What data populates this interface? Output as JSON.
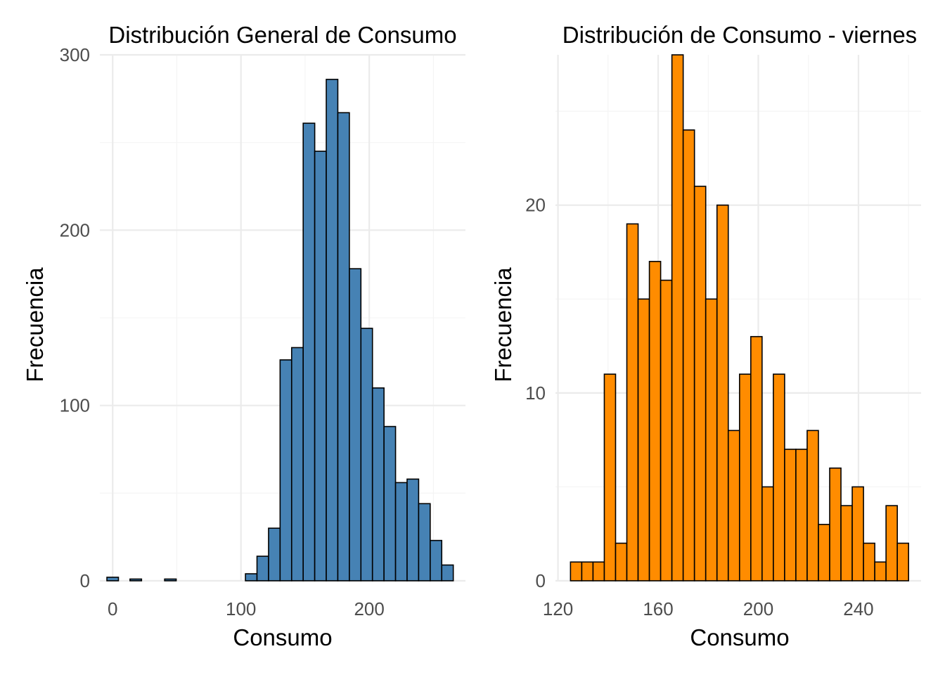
{
  "chart_data": [
    {
      "type": "histogram",
      "title": "Distribución General de Consumo",
      "xlabel": "Consumo",
      "ylabel": "Frecuencia",
      "bar_color": "#4682b4",
      "border_color": "#000000",
      "xlim": [
        -10,
        275
      ],
      "ylim": [
        0,
        300
      ],
      "x_ticks": [
        0,
        100,
        200
      ],
      "y_ticks": [
        0,
        100,
        200,
        300
      ],
      "x_minor": [
        50,
        150,
        250
      ],
      "y_minor": [
        50,
        150,
        250
      ],
      "bins": [
        {
          "start": -4.5,
          "end": 4.5,
          "count": 2
        },
        {
          "start": 4.5,
          "end": 13.5,
          "count": 0
        },
        {
          "start": 13.5,
          "end": 22.5,
          "count": 1
        },
        {
          "start": 22.5,
          "end": 31.5,
          "count": 0
        },
        {
          "start": 31.5,
          "end": 40.5,
          "count": 0
        },
        {
          "start": 40.5,
          "end": 49.5,
          "count": 1
        },
        {
          "start": 49.5,
          "end": 58.5,
          "count": 0
        },
        {
          "start": 58.5,
          "end": 67.5,
          "count": 0
        },
        {
          "start": 67.5,
          "end": 76.5,
          "count": 0
        },
        {
          "start": 76.5,
          "end": 85.5,
          "count": 0
        },
        {
          "start": 85.5,
          "end": 94.5,
          "count": 0
        },
        {
          "start": 94.5,
          "end": 103.5,
          "count": 0
        },
        {
          "start": 103.5,
          "end": 112.5,
          "count": 4
        },
        {
          "start": 112.5,
          "end": 121.5,
          "count": 14
        },
        {
          "start": 121.5,
          "end": 130.5,
          "count": 30
        },
        {
          "start": 130.5,
          "end": 139.5,
          "count": 126
        },
        {
          "start": 139.5,
          "end": 148.5,
          "count": 133
        },
        {
          "start": 148.5,
          "end": 157.5,
          "count": 261
        },
        {
          "start": 157.5,
          "end": 166.5,
          "count": 245
        },
        {
          "start": 166.5,
          "end": 175.5,
          "count": 286
        },
        {
          "start": 175.5,
          "end": 184.5,
          "count": 267
        },
        {
          "start": 184.5,
          "end": 193.5,
          "count": 178
        },
        {
          "start": 193.5,
          "end": 202.5,
          "count": 144
        },
        {
          "start": 202.5,
          "end": 211.5,
          "count": 110
        },
        {
          "start": 211.5,
          "end": 220.5,
          "count": 88
        },
        {
          "start": 220.5,
          "end": 229.5,
          "count": 56
        },
        {
          "start": 229.5,
          "end": 238.5,
          "count": 58
        },
        {
          "start": 238.5,
          "end": 247.5,
          "count": 44
        },
        {
          "start": 247.5,
          "end": 256.5,
          "count": 23
        },
        {
          "start": 256.5,
          "end": 265.5,
          "count": 9
        }
      ]
    },
    {
      "type": "histogram",
      "title": "Distribución de Consumo - viernes",
      "xlabel": "Consumo",
      "ylabel": "Frecuencia",
      "bar_color": "#ff8c00",
      "border_color": "#000000",
      "xlim": [
        119,
        265
      ],
      "ylim": [
        0,
        28
      ],
      "x_ticks": [
        120,
        160,
        200,
        240
      ],
      "y_ticks": [
        0,
        10,
        20
      ],
      "x_minor": [
        140,
        180,
        220,
        260
      ],
      "y_minor": [
        5,
        15,
        25
      ],
      "bins": [
        {
          "start": 125.0,
          "end": 129.5,
          "count": 1
        },
        {
          "start": 129.5,
          "end": 134.0,
          "count": 1
        },
        {
          "start": 134.0,
          "end": 138.5,
          "count": 1
        },
        {
          "start": 138.5,
          "end": 143.0,
          "count": 11
        },
        {
          "start": 143.0,
          "end": 147.5,
          "count": 2
        },
        {
          "start": 147.5,
          "end": 152.0,
          "count": 19
        },
        {
          "start": 152.0,
          "end": 156.5,
          "count": 15
        },
        {
          "start": 156.5,
          "end": 161.0,
          "count": 17
        },
        {
          "start": 161.0,
          "end": 165.5,
          "count": 16
        },
        {
          "start": 165.5,
          "end": 170.0,
          "count": 28
        },
        {
          "start": 170.0,
          "end": 174.5,
          "count": 24
        },
        {
          "start": 174.5,
          "end": 179.0,
          "count": 21
        },
        {
          "start": 179.0,
          "end": 183.5,
          "count": 15
        },
        {
          "start": 183.5,
          "end": 188.0,
          "count": 20
        },
        {
          "start": 188.0,
          "end": 192.5,
          "count": 8
        },
        {
          "start": 192.5,
          "end": 197.0,
          "count": 11
        },
        {
          "start": 197.0,
          "end": 201.5,
          "count": 13
        },
        {
          "start": 201.5,
          "end": 206.0,
          "count": 5
        },
        {
          "start": 206.0,
          "end": 210.5,
          "count": 11
        },
        {
          "start": 210.5,
          "end": 215.0,
          "count": 7
        },
        {
          "start": 215.0,
          "end": 219.5,
          "count": 7
        },
        {
          "start": 219.5,
          "end": 224.0,
          "count": 8
        },
        {
          "start": 224.0,
          "end": 228.5,
          "count": 3
        },
        {
          "start": 228.5,
          "end": 233.0,
          "count": 6
        },
        {
          "start": 233.0,
          "end": 237.5,
          "count": 4
        },
        {
          "start": 237.5,
          "end": 242.0,
          "count": 5
        },
        {
          "start": 242.0,
          "end": 246.5,
          "count": 2
        },
        {
          "start": 246.5,
          "end": 251.0,
          "count": 1
        },
        {
          "start": 251.0,
          "end": 255.5,
          "count": 4
        },
        {
          "start": 255.5,
          "end": 260.0,
          "count": 2
        }
      ]
    }
  ]
}
